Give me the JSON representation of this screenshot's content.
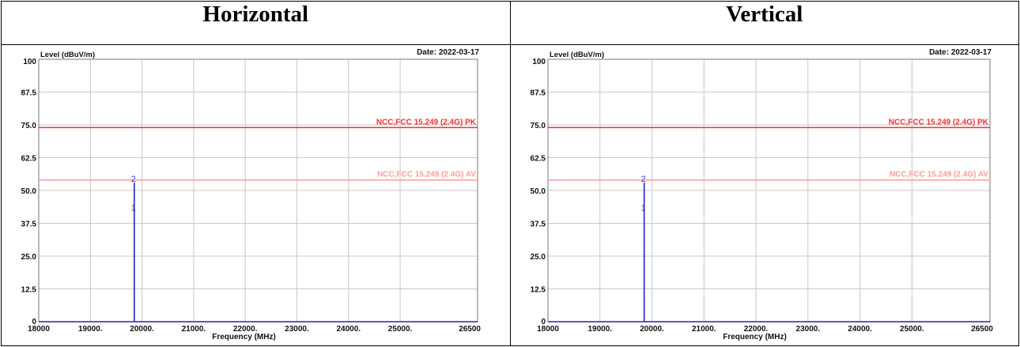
{
  "headers": {
    "left": "Horizontal",
    "right": "Vertical"
  },
  "chart_data": [
    {
      "type": "line",
      "panel": "Horizontal",
      "ylabel": "Level (dBuV/m)",
      "xlabel": "Frequency (MHz)",
      "date_label": "Date: 2022-03-17",
      "xlim": [
        18000,
        26500
      ],
      "ylim": [
        0,
        100
      ],
      "x_ticks": [
        18000,
        19000,
        20000,
        21000,
        22000,
        23000,
        24000,
        25000,
        26500
      ],
      "x_tick_labels": [
        "18000",
        "19000.",
        "20000.",
        "21000.",
        "22000.",
        "23000.",
        "24000.",
        "25000.",
        "26500"
      ],
      "y_ticks": [
        0,
        12.5,
        25.0,
        37.5,
        50.0,
        62.5,
        75.0,
        87.5,
        100
      ],
      "y_tick_labels": [
        "0",
        "12.5",
        "25.0",
        "37.5",
        "50.0",
        "62.5",
        "75.0",
        "87.5",
        "100"
      ],
      "grid": true,
      "limit_lines": [
        {
          "name": "NCC,FCC 15.249 (2.4G) PK",
          "y": 74,
          "color": "#ff2b2b"
        },
        {
          "name": "NCC,FCC 15.249 (2.4G) AV",
          "y": 54,
          "color": "#ff9a9a"
        }
      ],
      "series": [
        {
          "x": [
            18000,
            19850,
            19850,
            19850,
            26500
          ],
          "y": [
            0,
            0,
            53,
            0,
            0
          ],
          "color": "#2222cc"
        }
      ],
      "markers": [
        {
          "label": "2",
          "x": 19850,
          "y": 53
        },
        {
          "label": "1",
          "x": 19850,
          "y": 42
        }
      ]
    },
    {
      "type": "line",
      "panel": "Vertical",
      "ylabel": "Level (dBuV/m)",
      "xlabel": "Frequency (MHz)",
      "date_label": "Date: 2022-03-17",
      "xlim": [
        18000,
        26500
      ],
      "ylim": [
        0,
        100
      ],
      "x_ticks": [
        18000,
        19000,
        20000,
        21000,
        22000,
        23000,
        24000,
        25000,
        26500
      ],
      "x_tick_labels": [
        "18000",
        "19000.",
        "20000.",
        "21000.",
        "22000.",
        "23000.",
        "24000.",
        "25000.",
        "26500"
      ],
      "y_ticks": [
        0,
        12.5,
        25.0,
        37.5,
        50.0,
        62.5,
        75.0,
        87.5,
        100
      ],
      "y_tick_labels": [
        "0",
        "12.5",
        "25.0",
        "37.5",
        "50.0",
        "62.5",
        "75.0",
        "87.5",
        "100"
      ],
      "grid": true,
      "limit_lines": [
        {
          "name": "NCC,FCC 15.249 (2.4G) PK",
          "y": 74,
          "color": "#ff2b2b"
        },
        {
          "name": "NCC,FCC 15.249 (2.4G) AV",
          "y": 54,
          "color": "#ff9a9a"
        }
      ],
      "series": [
        {
          "x": [
            18000,
            19850,
            19850,
            19850,
            26500
          ],
          "y": [
            0,
            0,
            53,
            0,
            0
          ],
          "color": "#2222cc"
        }
      ],
      "markers": [
        {
          "label": "2",
          "x": 19850,
          "y": 53
        },
        {
          "label": "1",
          "x": 19850,
          "y": 42
        }
      ]
    }
  ]
}
